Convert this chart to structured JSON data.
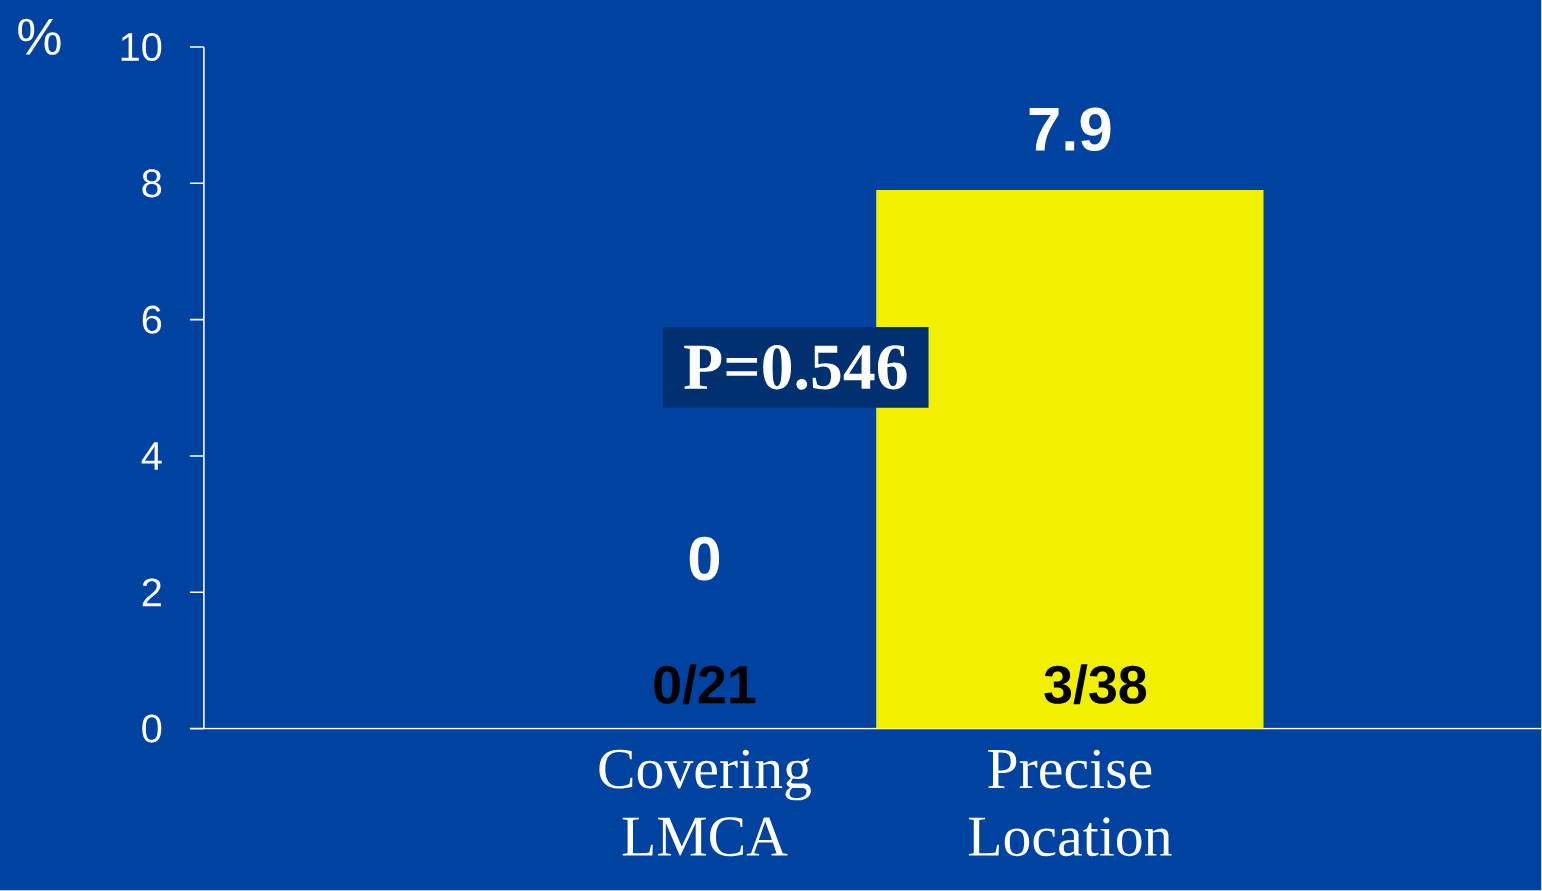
{
  "chart_data": {
    "type": "bar",
    "ylabel": "%",
    "categories": [
      "Covering LMCA",
      "Precise Location"
    ],
    "values": [
      0,
      7.9
    ],
    "color": "#f0f000",
    "ylim": [
      0,
      10
    ],
    "yticks": [
      0,
      2,
      4,
      6,
      8,
      10
    ],
    "data_labels": true,
    "annotations": [
      "P=0.546",
      "0/21",
      "3/38"
    ]
  }
}
